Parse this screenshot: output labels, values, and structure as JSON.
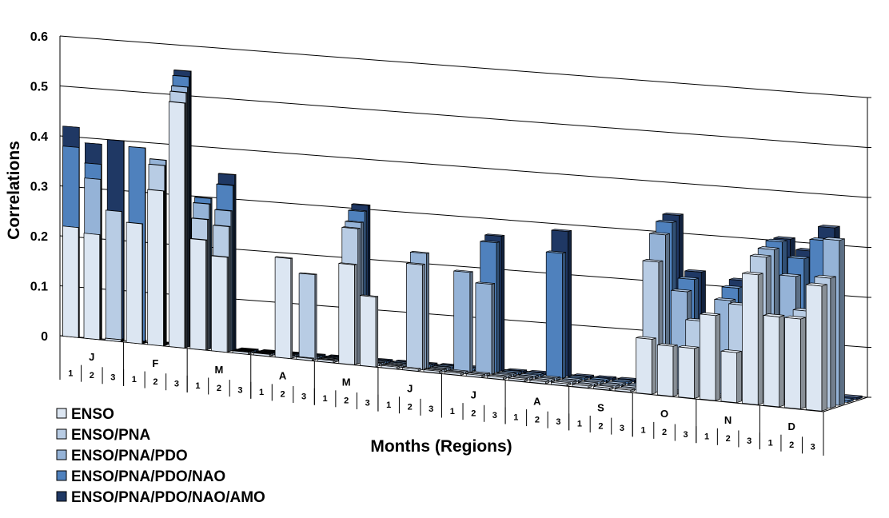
{
  "chart_data": {
    "type": "bar",
    "ylabel": "Correlations",
    "xlabel": "Months (Regions)",
    "ylim": [
      0,
      0.6
    ],
    "yticks": [
      "0",
      "0.1",
      "0.2",
      "0.3",
      "0.4",
      "0.5",
      "0.6"
    ],
    "months": [
      "J",
      "F",
      "M",
      "A",
      "M",
      "J",
      "J",
      "A",
      "S",
      "O",
      "N",
      "D"
    ],
    "regions": [
      "1",
      "2",
      "3"
    ],
    "legend_position": "bottom-left",
    "series": [
      {
        "name": "ENSO",
        "color": "#dce6f2",
        "values": [
          0.22,
          0.21,
          0.0,
          0.24,
          0.31,
          0.49,
          0.22,
          0.19,
          0.0,
          0.0,
          0.2,
          0.0,
          0.0,
          0.2,
          0.14,
          0.0,
          0.0,
          0.0,
          0.0,
          0.0,
          0.0,
          0.0,
          0.0,
          0.0,
          0.0,
          0.0,
          0.0,
          0.11,
          0.1,
          0.1,
          0.17,
          0.1,
          0.26,
          0.18,
          0.18,
          0.25
        ]
      },
      {
        "name": "ENSO/PNA",
        "color": "#b8cce4",
        "values": [
          0.0,
          0.0,
          0.26,
          0.0,
          0.36,
          0.51,
          0.26,
          0.25,
          0.0,
          0.0,
          0.0,
          0.17,
          0.0,
          0.27,
          0.0,
          0.0,
          0.21,
          0.0,
          0.0,
          0.0,
          0.0,
          0.0,
          0.0,
          0.0,
          0.0,
          0.0,
          0.0,
          0.26,
          0.0,
          0.15,
          0.0,
          0.19,
          0.29,
          0.0,
          0.19,
          0.26
        ]
      },
      {
        "name": "ENSO/PNA/PDO",
        "color": "#95b3d7",
        "values": [
          0.0,
          0.32,
          0.0,
          0.0,
          0.37,
          0.52,
          0.29,
          0.28,
          0.0,
          0.0,
          0.0,
          0.0,
          0.0,
          0.28,
          0.0,
          0.0,
          0.23,
          0.0,
          0.2,
          0.18,
          0.0,
          0.0,
          0.0,
          0.0,
          0.0,
          0.0,
          0.0,
          0.31,
          0.2,
          0.0,
          0.19,
          0.0,
          0.3,
          0.25,
          0.0,
          0.33
        ]
      },
      {
        "name": "ENSO/PNA/PDO/NAO",
        "color": "#4f81bd",
        "values": [
          0.38,
          0.35,
          0.0,
          0.39,
          0.0,
          0.54,
          0.3,
          0.33,
          0.0,
          0.0,
          0.0,
          0.0,
          0.0,
          0.3,
          0.0,
          0.0,
          0.0,
          0.0,
          0.0,
          0.26,
          0.0,
          0.0,
          0.25,
          0.0,
          0.0,
          0.0,
          0.0,
          0.33,
          0.22,
          0.0,
          0.21,
          0.0,
          0.31,
          0.28,
          0.32,
          0.0
        ]
      },
      {
        "name": "ENSO/PNA/PDO/NAO/AMO",
        "color": "#1f3864",
        "values": [
          0.42,
          0.39,
          0.4,
          0.0,
          0.0,
          0.55,
          0.0,
          0.35,
          0.0,
          0.0,
          0.0,
          0.0,
          0.0,
          0.31,
          0.0,
          0.0,
          0.0,
          0.0,
          0.0,
          0.27,
          0.0,
          0.0,
          0.29,
          0.0,
          0.0,
          0.0,
          0.0,
          0.34,
          0.23,
          0.0,
          0.22,
          0.0,
          0.31,
          0.29,
          0.34,
          0.0
        ]
      }
    ]
  }
}
